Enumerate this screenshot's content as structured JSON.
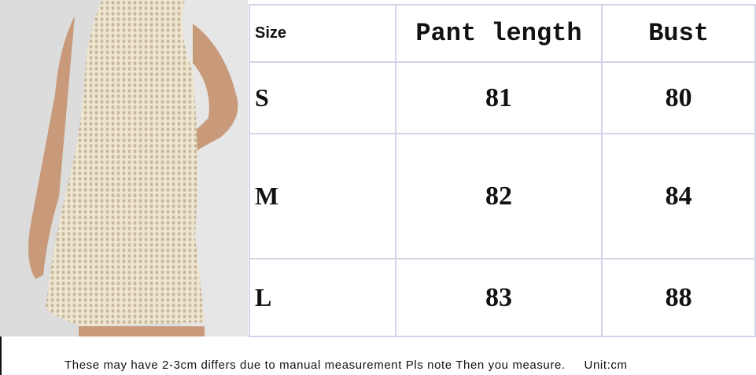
{
  "table": {
    "headers": [
      "Size",
      "Pant length",
      "Bust"
    ],
    "rows": [
      {
        "size": "S",
        "pant_length": "81",
        "bust": "80"
      },
      {
        "size": "M",
        "pant_length": "82",
        "bust": "84"
      },
      {
        "size": "L",
        "pant_length": "83",
        "bust": "88"
      }
    ]
  },
  "note": "These may have 2-3cm differs due to manual measurement Pls note Then you measure.",
  "unit": "Unit:cm",
  "colors": {
    "grid": "#d3d3e8",
    "dress": "#eee4cc",
    "background": "#d9d9d9"
  }
}
